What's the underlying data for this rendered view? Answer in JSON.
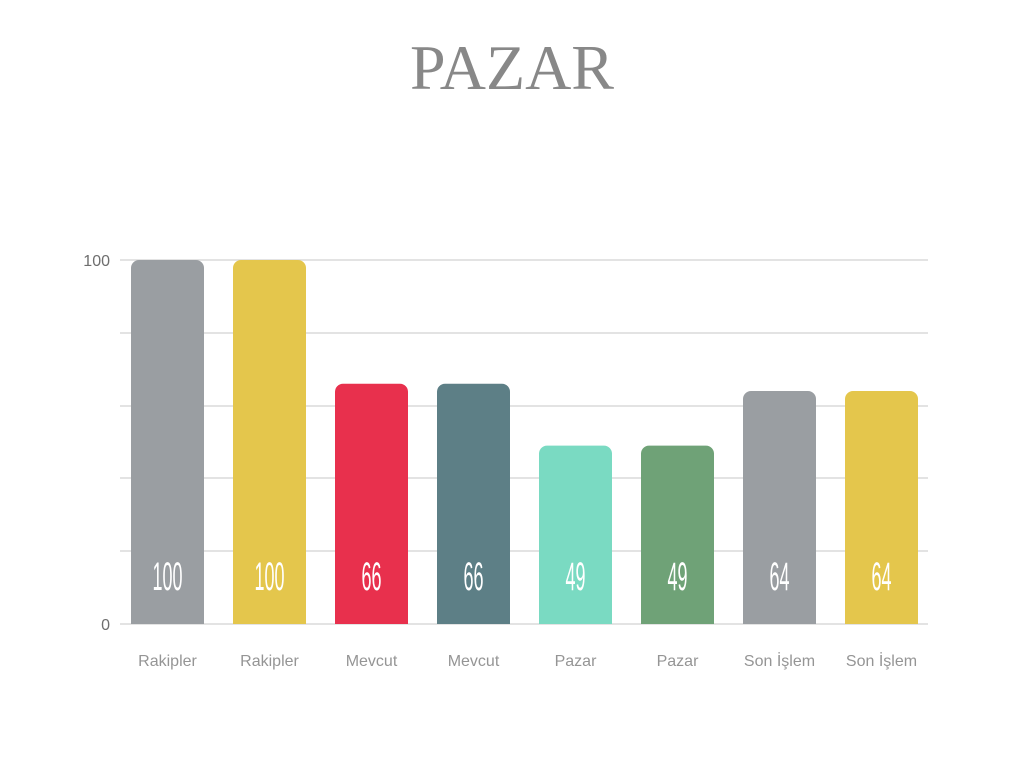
{
  "chart_data": {
    "type": "bar",
    "title": "PAZAR",
    "categories": [
      "Rakipler",
      "Rakipler",
      "Mevcut",
      "Mevcut",
      "Pazar",
      "Pazar",
      "Son İşlem",
      "Son İşlem"
    ],
    "values": [
      100,
      100,
      66,
      66,
      49,
      49,
      64,
      64
    ],
    "colors": [
      "#9a9ea2",
      "#e4c64c",
      "#e8304d",
      "#5d7f86",
      "#7adac2",
      "#6fa277",
      "#9a9ea2",
      "#e4c64c"
    ],
    "ylim": [
      0,
      100
    ],
    "yticks": [
      0,
      100
    ],
    "gridlines": [
      0,
      20,
      40,
      60,
      80,
      100
    ],
    "grid": true,
    "data_labels": true
  }
}
